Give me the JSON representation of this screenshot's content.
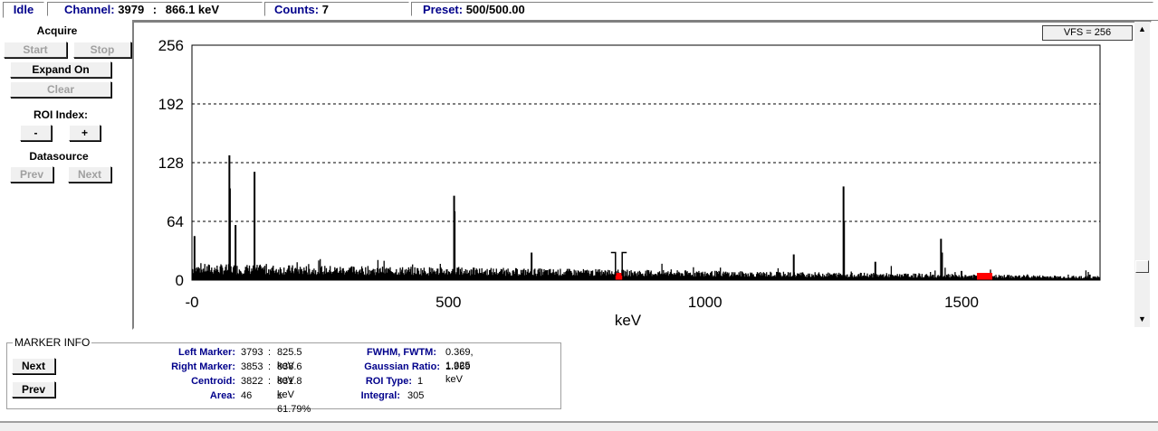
{
  "status": {
    "state": "Idle",
    "channel_label": "Channel:",
    "channel_value": "3979",
    "channel_sep": ":",
    "channel_energy": "866.1 keV",
    "counts_label": "Counts:",
    "counts_value": "7",
    "preset_label": "Preset:",
    "preset_value": "500/500.00"
  },
  "panel": {
    "acquire_label": "Acquire",
    "start": "Start",
    "stop": "Stop",
    "expand": "Expand On",
    "clear": "Clear",
    "roi_label": "ROI Index:",
    "roi_minus": "-",
    "roi_plus": "+",
    "datasource_label": "Datasource",
    "prev": "Prev",
    "next": "Next"
  },
  "vfs": "VFS = 256",
  "scroll": {
    "up": "▲",
    "down": "▼"
  },
  "chart_data": {
    "type": "bar",
    "xlabel": "keV",
    "xlim": [
      0,
      1770
    ],
    "ylim": [
      0,
      256
    ],
    "yticks": [
      "256",
      "192",
      "128",
      "64",
      "0"
    ],
    "xticks": [
      "-0",
      "500",
      "1000",
      "1500"
    ],
    "xtick_values": [
      0,
      500,
      1000,
      1500
    ],
    "ytick_values": [
      256,
      192,
      128,
      64,
      0
    ],
    "grid": "horizontal dashed",
    "baseline_noise": 18,
    "peaks": [
      {
        "x": 5,
        "y": 48
      },
      {
        "x": 73,
        "y": 136
      },
      {
        "x": 74,
        "y": 100
      },
      {
        "x": 85,
        "y": 60
      },
      {
        "x": 122,
        "y": 118
      },
      {
        "x": 511,
        "y": 92
      },
      {
        "x": 512,
        "y": 75
      },
      {
        "x": 662,
        "y": 30
      },
      {
        "x": 1173,
        "y": 28
      },
      {
        "x": 1270,
        "y": 102
      },
      {
        "x": 1271,
        "y": 64
      },
      {
        "x": 1332,
        "y": 20
      },
      {
        "x": 1460,
        "y": 45
      },
      {
        "x": 1462,
        "y": 30
      },
      {
        "x": 1500,
        "y": 10
      },
      {
        "x": 1750,
        "y": 6
      }
    ],
    "roi_markers": [
      {
        "x": 825.5,
        "type": "left"
      },
      {
        "x": 838.6,
        "type": "right"
      }
    ],
    "roi_regions": [
      {
        "x0": 825.5,
        "x1": 838.6,
        "color": "#ff0000"
      },
      {
        "x0": 1530,
        "x1": 1560,
        "color": "#ff0000"
      }
    ]
  },
  "marker_info": {
    "title": "MARKER INFO",
    "next": "Next",
    "prev": "Prev",
    "left_marker_label": "Left Marker:",
    "left_marker_ch": "3793",
    "left_marker_sep": ":",
    "left_marker_kev": "825.5 keV",
    "right_marker_label": "Right Marker:",
    "right_marker_ch": "3853",
    "right_marker_sep": ":",
    "right_marker_kev": "838.6 keV",
    "centroid_label": "Centroid:",
    "centroid_ch": "3822",
    "centroid_sep": ":",
    "centroid_kev": "831.8 keV",
    "area_label": "Area:",
    "area_value": "46",
    "area_err": "± 61.79%",
    "fwhm_label": "FWHM, FWTM:",
    "fwhm_value": "0.369, 1.325 keV",
    "gauss_label": "Gaussian Ratio:",
    "gauss_value": "1.969",
    "roitype_label": "ROI Type:",
    "roitype_value": "1",
    "integral_label": "Integral:",
    "integral_value": "305"
  }
}
